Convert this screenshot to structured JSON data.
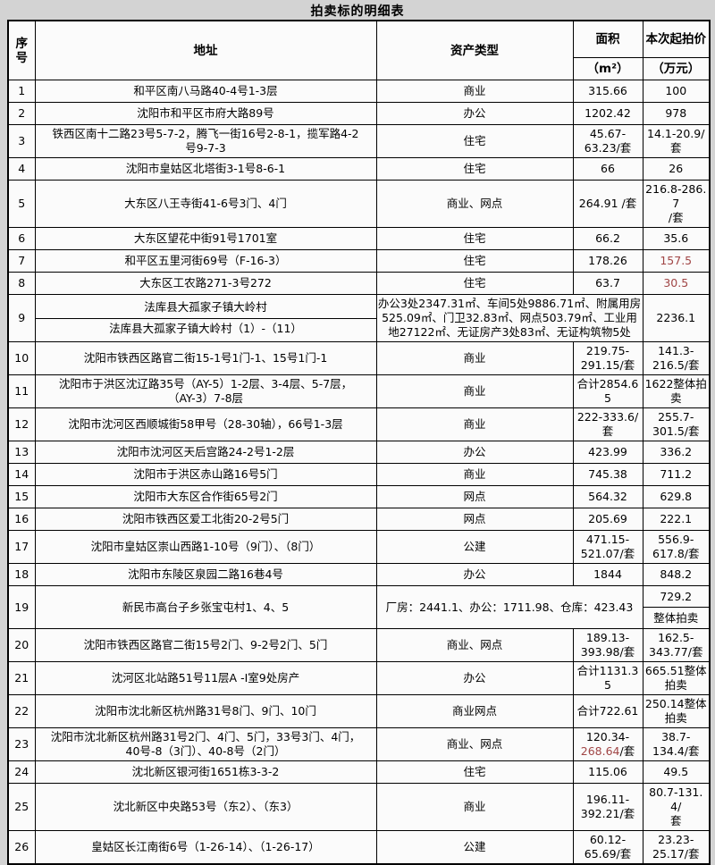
{
  "title": "拍卖标的明细表",
  "colors": {
    "red_value": "#a04545"
  },
  "table": {
    "headers": {
      "no": "序号",
      "address": "地址",
      "type": "资产类型",
      "area": "面积",
      "area_unit": "（m²）",
      "price": "本次起拍价",
      "price_unit": "（万元）"
    },
    "rows": [
      {
        "no": "1",
        "addr": [
          "和平区南八马路40-4号1-3层"
        ],
        "type": [
          "商业"
        ],
        "area": [
          "315.66"
        ],
        "price": [
          "100"
        ]
      },
      {
        "no": "2",
        "addr": [
          "沈阳市和平区市府大路89号"
        ],
        "type": [
          "办公"
        ],
        "area": [
          "1202.42"
        ],
        "price": [
          "978"
        ]
      },
      {
        "no": "3",
        "addr": [
          "铁西区南十二路23号5-7-2，腾飞一街16号2-8-1，揽军路4-2",
          "号9-7-3"
        ],
        "type": [
          "住宅"
        ],
        "area": [
          "45.67-",
          "63.23/套"
        ],
        "price": [
          "14.1-20.9/",
          "套"
        ]
      },
      {
        "no": "4",
        "addr": [
          "沈阳市皇姑区北塔街3-1号8-6-1"
        ],
        "type": [
          "住宅"
        ],
        "area": [
          "66"
        ],
        "price": [
          "26"
        ]
      },
      {
        "no": "5",
        "addr": [
          "大东区八王寺街41-6号3门、4门"
        ],
        "type": [
          "商业、网点"
        ],
        "area": [
          "264.91 /套"
        ],
        "price": [
          "216.8-286.7",
          "/套"
        ]
      },
      {
        "no": "6",
        "addr": [
          "大东区望花中街91号1701室"
        ],
        "type": [
          "住宅"
        ],
        "area": [
          "66.2"
        ],
        "price": [
          "35.6"
        ]
      },
      {
        "no": "7",
        "addr": [
          "和平区五里河街69号（F-16-3）"
        ],
        "type": [
          "住宅"
        ],
        "area": [
          "178.26"
        ],
        "price": [
          [
            {
              "t": "157.5",
              "red": true
            }
          ]
        ]
      },
      {
        "no": "8",
        "addr": [
          "大东区工农路271-3号272"
        ],
        "type": [
          "住宅"
        ],
        "area": [
          "63.7"
        ],
        "price": [
          [
            {
              "t": "30.5",
              "red": true
            }
          ]
        ]
      },
      {
        "no": "9",
        "addr2": [
          "法库县大孤家子镇大岭村",
          "法库县大孤家子镇大岭村（1）-（11）"
        ],
        "type_area": "办公3处2347.31㎡、车间5处9886.71㎡、附属用房525.09㎡、门卫32.83㎡、网点503.79㎡、工业用地27122㎡、无证房产3处83㎡、无证构筑物5处",
        "price": [
          "2236.1"
        ]
      },
      {
        "no": "10",
        "addr": [
          "沈阳市铁西区路官二街15-1号1门-1、15号1门-1"
        ],
        "type": [
          "商业"
        ],
        "area": [
          "219.75-",
          "291.15/套"
        ],
        "price": [
          "141.3-",
          "216.5/套"
        ]
      },
      {
        "no": "11",
        "addr": [
          "沈阳市于洪区沈辽路35号（AY-5）1-2层、3-4层、5-7层，",
          "（AY-3）7-8层"
        ],
        "type": [
          "商业"
        ],
        "area": [
          "合计2854.65"
        ],
        "price": [
          "1622整体拍",
          "卖"
        ]
      },
      {
        "no": "12",
        "addr": [
          "沈阳市沈河区西顺城街58甲号（28-30轴），66号1-3层"
        ],
        "type": [
          "商业"
        ],
        "area": [
          "222-333.6/",
          "套"
        ],
        "price": [
          "255.7-",
          "301.5/套"
        ]
      },
      {
        "no": "13",
        "addr": [
          "沈阳市沈河区天后宫路24-2号1-2层"
        ],
        "type": [
          "办公"
        ],
        "area": [
          "423.99"
        ],
        "price": [
          "336.2"
        ]
      },
      {
        "no": "14",
        "addr": [
          "沈阳市于洪区赤山路16号5门"
        ],
        "type": [
          "商业"
        ],
        "area": [
          "745.38"
        ],
        "price": [
          "711.2"
        ]
      },
      {
        "no": "15",
        "addr": [
          "沈阳市大东区合作街65号2门"
        ],
        "type": [
          "网点"
        ],
        "area": [
          "564.32"
        ],
        "price": [
          "629.8"
        ]
      },
      {
        "no": "16",
        "addr": [
          "沈阳市铁西区爱工北街20-2号5门"
        ],
        "type": [
          "网点"
        ],
        "area": [
          "205.69"
        ],
        "price": [
          "222.1"
        ]
      },
      {
        "no": "17",
        "addr": [
          "沈阳市皇姑区崇山西路1-10号（9门）、（8门）"
        ],
        "type": [
          "公建"
        ],
        "area": [
          "471.15-",
          "521.07/套"
        ],
        "price": [
          "556.9-",
          "617.8/套"
        ]
      },
      {
        "no": "18",
        "addr": [
          "沈阳市东陵区泉园二路16巷4号"
        ],
        "type": [
          "办公"
        ],
        "area": [
          "1844"
        ],
        "price": [
          "848.2"
        ]
      },
      {
        "no": "19",
        "addr": [
          "新民市高台子乡张宝屯村1、4、5"
        ],
        "type_area": "厂房：2441.1、办公：1711.98、仓库：423.43",
        "price2": [
          "729.2",
          "整体拍卖"
        ]
      },
      {
        "no": "20",
        "addr": [
          "沈阳市铁西区路官二街15号2门、9-2号2门、5门"
        ],
        "type": [
          "商业、网点"
        ],
        "area": [
          "189.13-",
          "393.98/套"
        ],
        "price": [
          "162.5-",
          "343.77/套"
        ]
      },
      {
        "no": "21",
        "addr": [
          "沈河区北站路51号11层A -I室9处房产"
        ],
        "type": [
          "办公"
        ],
        "area": [
          "合计1131.35"
        ],
        "price": [
          "665.51整体",
          "拍卖"
        ]
      },
      {
        "no": "22",
        "addr": [
          "沈阳市沈北新区杭州路31号8门、9门、10门"
        ],
        "type": [
          "商业网点"
        ],
        "area": [
          "合计722.61"
        ],
        "price": [
          "250.14整体",
          "拍卖"
        ]
      },
      {
        "no": "23",
        "addr": [
          "沈阳市沈北新区杭州路31号2门、4门、5门，33号3门、4门，",
          "40号-8（3门）、40-8号（2门）"
        ],
        "type": [
          "商业、网点"
        ],
        "area": [
          "120.34-",
          [
            {
              "t": "268.64",
              "red": true
            },
            {
              "t": "/套"
            }
          ]
        ],
        "price": [
          "38.7-",
          "134.4/套"
        ]
      },
      {
        "no": "24",
        "addr": [
          "沈北新区银河街1651栋3-3-2"
        ],
        "type": [
          "住宅"
        ],
        "area": [
          "115.06"
        ],
        "price": [
          "49.5"
        ]
      },
      {
        "no": "25",
        "addr": [
          "沈北新区中央路53号（东2）、（东3）"
        ],
        "type": [
          "商业"
        ],
        "area": [
          "196.11-",
          "392.21/套"
        ],
        "price": [
          "80.7-131.4/",
          "套"
        ]
      },
      {
        "no": "26",
        "addr": [
          "皇姑区长江南街6号（1-26-14）、（1-26-17）"
        ],
        "type": [
          "公建"
        ],
        "area": [
          "60.12-",
          "65.69/套"
        ],
        "price": [
          "23.23-",
          "25.17/套"
        ]
      }
    ]
  }
}
